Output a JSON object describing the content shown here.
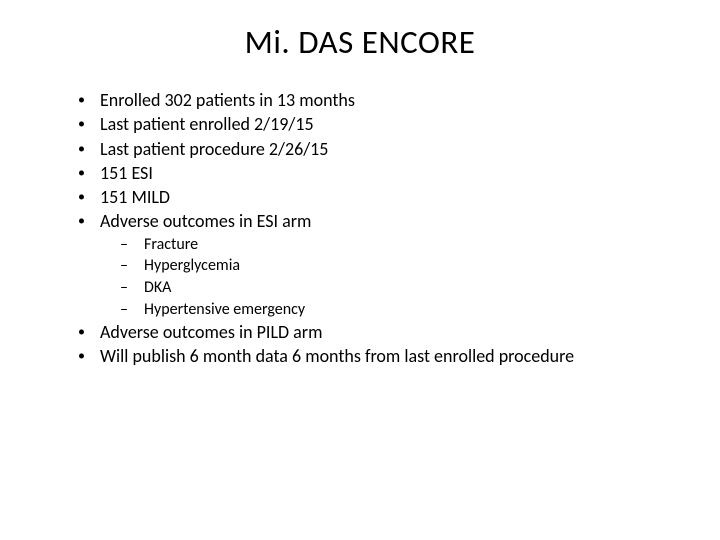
{
  "slide": {
    "title": "Mi. DAS ENCORE",
    "title_fontsize": 33,
    "body_fontsize": 18,
    "sub_fontsize": 16,
    "background_color": "#ffffff",
    "text_color": "#000000",
    "bullets": [
      {
        "text": "Enrolled 302 patients in 13 months"
      },
      {
        "text": "Last patient enrolled 2/19/15"
      },
      {
        "text": "Last patient procedure 2/26/15"
      },
      {
        "text": "151 ESI"
      },
      {
        "text": "151 MILD"
      },
      {
        "text": "Adverse outcomes in ESI arm",
        "sub": [
          "Fracture",
          "Hyperglycemia",
          "DKA",
          "Hypertensive emergency"
        ]
      },
      {
        "text": "Adverse outcomes in PILD arm"
      },
      {
        "text": "Will publish 6 month data 6 months from last enrolled procedure"
      }
    ]
  }
}
